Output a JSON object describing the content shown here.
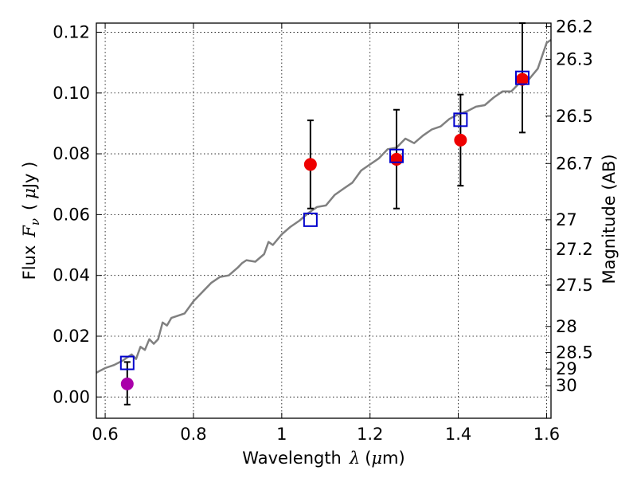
{
  "chart_data": {
    "type": "scatter",
    "xlabel": "Wavelength",
    "xlabel_symbol": "λ",
    "xlabel_unit_pre": "(",
    "xlabel_unit_mu": "μ",
    "xlabel_unit_post": "m)",
    "ylabel": "Flux",
    "ylabel_symbol_F": "F",
    "ylabel_symbol_sub": "ν",
    "ylabel_unit_pre": "(",
    "ylabel_unit_mu": "μ",
    "ylabel_unit_post": "Jy )",
    "y2label": "Magnitude (AB)",
    "xlim": [
      0.58,
      1.61
    ],
    "ylim": [
      -0.007,
      0.123
    ],
    "grid": true,
    "x_ticks": [
      {
        "value": 0.6,
        "label": "0.6"
      },
      {
        "value": 0.8,
        "label": "0.8"
      },
      {
        "value": 1.0,
        "label": "1"
      },
      {
        "value": 1.2,
        "label": "1.2"
      },
      {
        "value": 1.4,
        "label": "1.4"
      },
      {
        "value": 1.6,
        "label": "1.6"
      }
    ],
    "y_ticks": [
      {
        "value": 0.0,
        "label": "0.00"
      },
      {
        "value": 0.02,
        "label": "0.02"
      },
      {
        "value": 0.04,
        "label": "0.04"
      },
      {
        "value": 0.06,
        "label": "0.06"
      },
      {
        "value": 0.08,
        "label": "0.08"
      },
      {
        "value": 0.1,
        "label": "0.10"
      },
      {
        "value": 0.12,
        "label": "0.12"
      }
    ],
    "y2_ticks": [
      {
        "label": "26.2",
        "flux": 0.1218
      },
      {
        "label": "26.3",
        "flux": 0.1111
      },
      {
        "label": "26.5",
        "flux": 0.0924
      },
      {
        "label": "26.7",
        "flux": 0.0768
      },
      {
        "label": "27",
        "flux": 0.0583
      },
      {
        "label": "27.2",
        "flux": 0.0485
      },
      {
        "label": "27.5",
        "flux": 0.0368
      },
      {
        "label": "28",
        "flux": 0.0232
      },
      {
        "label": "28.5",
        "flux": 0.0146
      },
      {
        "label": "29",
        "flux": 0.0092
      },
      {
        "label": "30",
        "flux": 0.0037
      }
    ],
    "spectrum": {
      "color": "#808080",
      "x": [
        0.58,
        0.6,
        0.62,
        0.64,
        0.66,
        0.67,
        0.68,
        0.69,
        0.7,
        0.71,
        0.72,
        0.73,
        0.74,
        0.75,
        0.76,
        0.78,
        0.8,
        0.82,
        0.84,
        0.86,
        0.88,
        0.9,
        0.91,
        0.92,
        0.94,
        0.96,
        0.97,
        0.98,
        1.0,
        1.02,
        1.04,
        1.06,
        1.08,
        1.1,
        1.12,
        1.14,
        1.16,
        1.18,
        1.2,
        1.22,
        1.24,
        1.26,
        1.28,
        1.3,
        1.32,
        1.34,
        1.36,
        1.38,
        1.4,
        1.42,
        1.44,
        1.46,
        1.48,
        1.5,
        1.52,
        1.54,
        1.56,
        1.58,
        1.6,
        1.61
      ],
      "y": [
        0.008,
        0.0095,
        0.0105,
        0.012,
        0.014,
        0.0125,
        0.0165,
        0.0155,
        0.019,
        0.0175,
        0.019,
        0.0245,
        0.0235,
        0.026,
        0.0265,
        0.0275,
        0.0315,
        0.0345,
        0.0375,
        0.0395,
        0.04,
        0.0425,
        0.044,
        0.045,
        0.0445,
        0.047,
        0.051,
        0.05,
        0.0535,
        0.056,
        0.058,
        0.0605,
        0.0625,
        0.063,
        0.0665,
        0.0685,
        0.0705,
        0.0745,
        0.0765,
        0.0785,
        0.0815,
        0.082,
        0.085,
        0.0835,
        0.086,
        0.088,
        0.089,
        0.0915,
        0.093,
        0.094,
        0.0955,
        0.096,
        0.0985,
        0.1005,
        0.1005,
        0.1035,
        0.1045,
        0.108,
        0.1165,
        0.1175
      ]
    },
    "series": [
      {
        "marker": "circle",
        "color": "#ee0000",
        "points": [
          {
            "x": 1.065,
            "y": 0.0765,
            "err_low": 0.062,
            "err_high": 0.091
          },
          {
            "x": 1.26,
            "y": 0.0782,
            "err_low": 0.062,
            "err_high": 0.0945
          },
          {
            "x": 1.405,
            "y": 0.0845,
            "err_low": 0.0695,
            "err_high": 0.0995
          },
          {
            "x": 1.545,
            "y": 0.1045,
            "err_low": 0.087,
            "err_high": 0.123
          }
        ]
      },
      {
        "marker": "circle",
        "color": "#aa00aa",
        "points": [
          {
            "x": 0.65,
            "y": 0.0043,
            "err_low": -0.0025,
            "err_high": 0.0115
          }
        ]
      },
      {
        "marker": "square",
        "color": "#0000cc",
        "points": [
          {
            "x": 0.65,
            "y": 0.0112
          },
          {
            "x": 1.065,
            "y": 0.0583
          },
          {
            "x": 1.26,
            "y": 0.0793
          },
          {
            "x": 1.405,
            "y": 0.0912
          },
          {
            "x": 1.545,
            "y": 0.105
          }
        ]
      }
    ]
  }
}
